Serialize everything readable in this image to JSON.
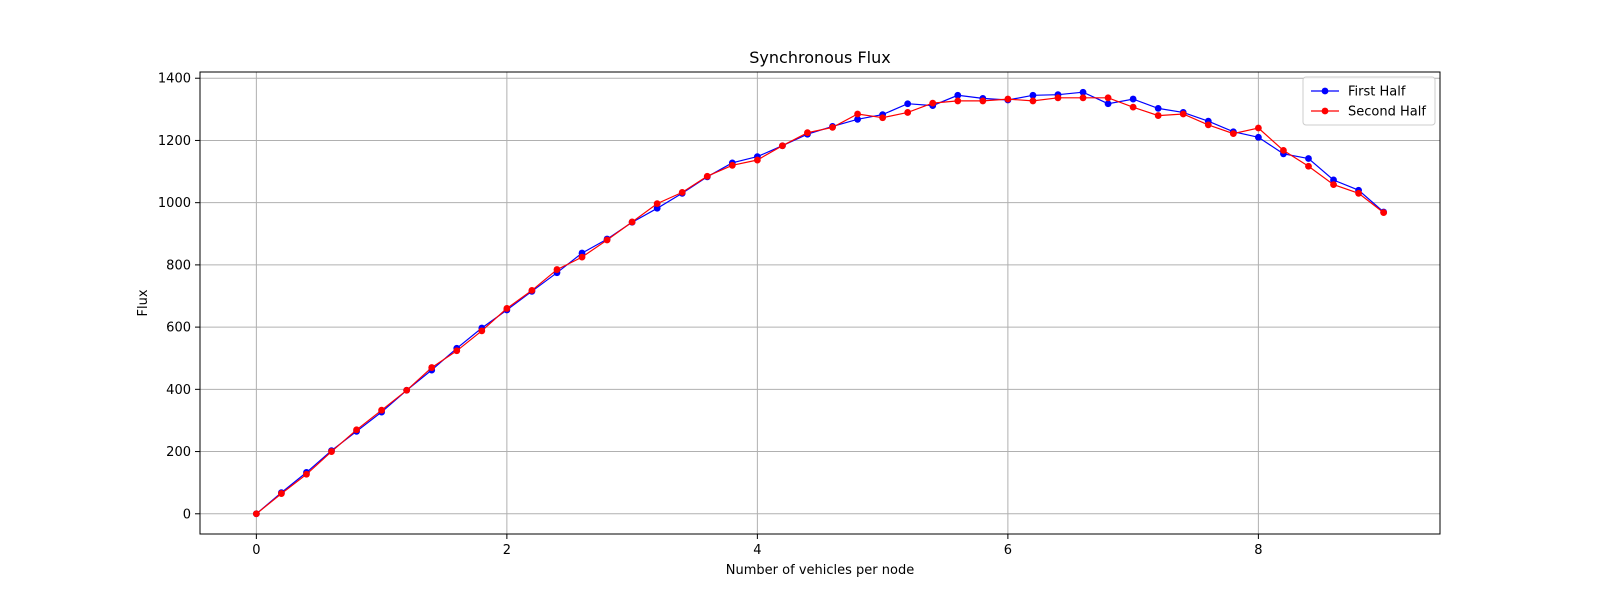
{
  "chart_data": {
    "type": "line",
    "title": "Synchronous Flux",
    "xlabel": "Number of vehicles per node",
    "ylabel": "Flux",
    "xlim": [
      -0.45,
      9.45
    ],
    "ylim": [
      -65,
      1420
    ],
    "xticks": [
      0,
      2,
      4,
      6,
      8
    ],
    "yticks": [
      0,
      200,
      400,
      600,
      800,
      1000,
      1200,
      1400
    ],
    "grid": true,
    "legend_position": "top-right",
    "x": [
      0,
      0.2,
      0.4,
      0.6,
      0.8,
      1.0,
      1.2,
      1.4,
      1.6,
      1.8,
      2.0,
      2.2,
      2.4,
      2.6,
      2.8,
      3.0,
      3.2,
      3.4,
      3.6,
      3.8,
      4.0,
      4.2,
      4.4,
      4.6,
      4.8,
      5.0,
      5.2,
      5.4,
      5.6,
      5.8,
      6.0,
      6.2,
      6.4,
      6.6,
      6.8,
      7.0,
      7.2,
      7.4,
      7.6,
      7.8,
      8.0,
      8.2,
      8.4,
      8.6,
      8.8,
      9.0
    ],
    "series": [
      {
        "name": "First Half",
        "color": "#0000ff",
        "values": [
          0,
          68,
          133,
          203,
          265,
          327,
          397,
          462,
          532,
          597,
          655,
          715,
          775,
          838,
          883,
          937,
          982,
          1030,
          1083,
          1128,
          1148,
          1183,
          1220,
          1245,
          1268,
          1283,
          1318,
          1312,
          1345,
          1335,
          1330,
          1345,
          1347,
          1355,
          1318,
          1333,
          1303,
          1290,
          1262,
          1228,
          1210,
          1157,
          1142,
          1073,
          1040,
          970
        ]
      },
      {
        "name": "Second Half",
        "color": "#ff0000",
        "values": [
          0,
          65,
          127,
          200,
          270,
          333,
          397,
          470,
          524,
          588,
          660,
          718,
          785,
          825,
          880,
          938,
          997,
          1033,
          1085,
          1120,
          1137,
          1183,
          1225,
          1242,
          1285,
          1273,
          1290,
          1320,
          1327,
          1327,
          1333,
          1327,
          1337,
          1337,
          1337,
          1307,
          1280,
          1285,
          1250,
          1222,
          1240,
          1168,
          1117,
          1058,
          1030,
          968
        ]
      }
    ]
  }
}
